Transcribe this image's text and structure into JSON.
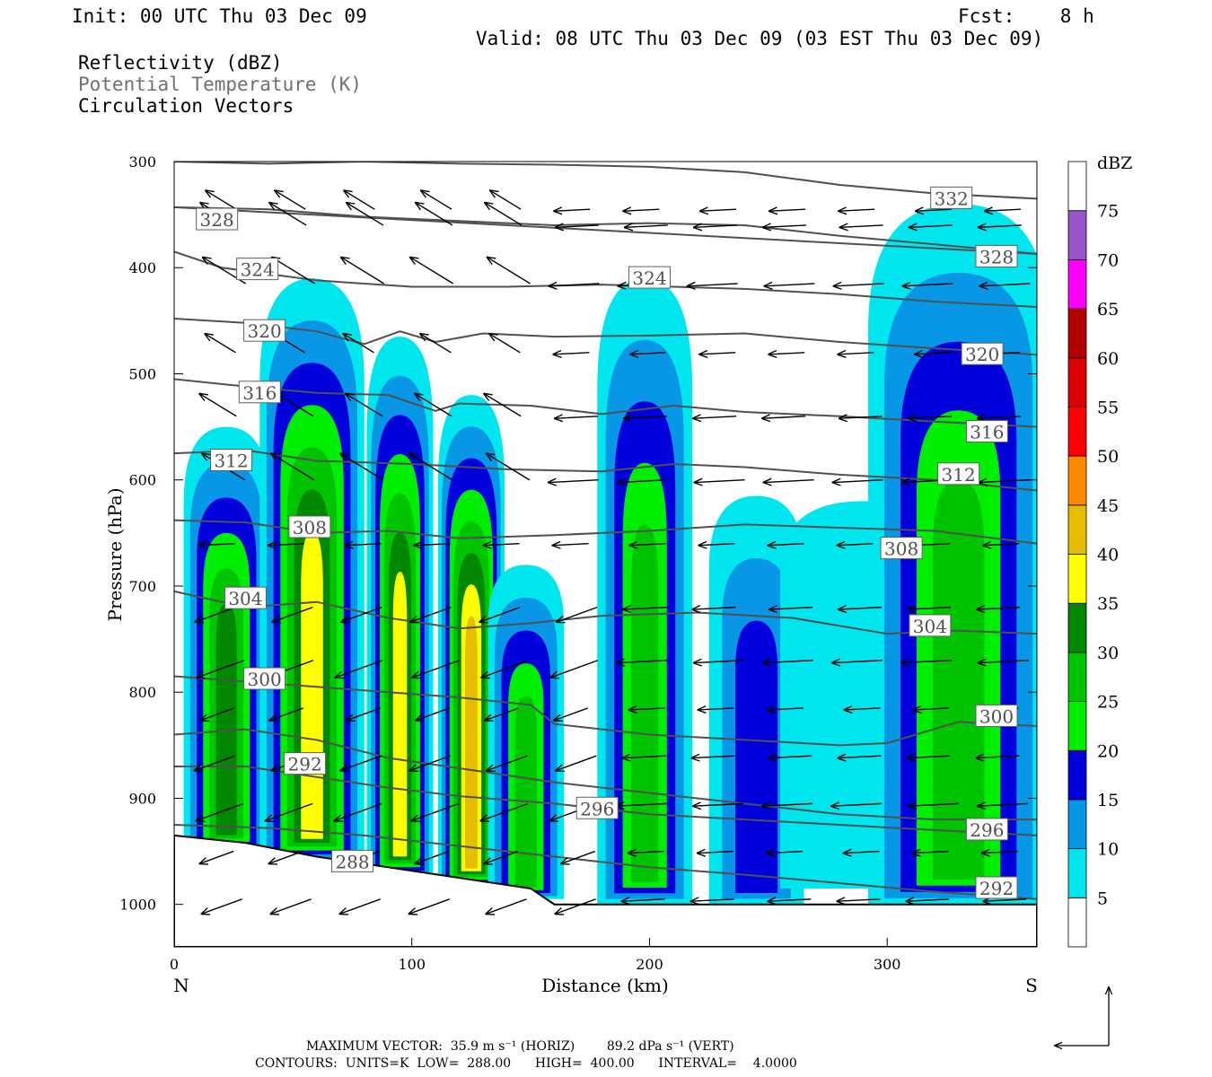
{
  "header": {
    "init": "Init: 00 UTC Thu 03 Dec 09",
    "fcst": "Fcst:    8 h",
    "valid": "Valid: 08 UTC Thu 03 Dec 09 (03 EST Thu 03 Dec 09)"
  },
  "fields": {
    "reflectivity": "Reflectivity (dBZ)",
    "theta": "Potential Temperature (K)",
    "vectors": "Circulation Vectors"
  },
  "footer": {
    "max_vector": "MAXIMUM VECTOR:  35.9 m s⁻¹ (HORIZ)        89.2 dPa s⁻¹ (VERT)",
    "contours": "CONTOURS:  UNITS=K  LOW=  288.00      HIGH=  400.00      INTERVAL=    4.0000"
  },
  "colors": {
    "theta_line": "#505050",
    "vector": "#000000"
  },
  "chart_data": {
    "type": "heatmap",
    "xlabel": "Distance (km)",
    "ylabel": "Pressure (hPa)",
    "xlim": [
      0,
      363
    ],
    "ylim": [
      1040,
      300
    ],
    "x_ticks": [
      "0",
      "100",
      "200",
      "300"
    ],
    "y_ticks": [
      "300",
      "400",
      "500",
      "600",
      "700",
      "800",
      "900",
      "1000"
    ],
    "x_end_labels": {
      "left": "N",
      "right": "S"
    },
    "colorbar": {
      "unit": "dBZ",
      "levels": [
        "5",
        "10",
        "15",
        "20",
        "25",
        "30",
        "35",
        "40",
        "45",
        "50",
        "55",
        "60",
        "65",
        "70",
        "75"
      ],
      "colors": [
        "#ffffff",
        "#00e6ee",
        "#0896e6",
        "#0000dd",
        "#00ee00",
        "#00c400",
        "#008800",
        "#ffff00",
        "#e6be00",
        "#ff8800",
        "#ff0000",
        "#dd0000",
        "#b00000",
        "#ff00ff",
        "#9955c8",
        "#ffffff"
      ]
    },
    "reflectivity_cells": [
      {
        "x": 22,
        "top": 550,
        "bottom": 950,
        "w": 18,
        "peak": 30
      },
      {
        "x": 58,
        "top": 410,
        "bottom": 960,
        "w": 22,
        "peak": 35
      },
      {
        "x": 95,
        "top": 465,
        "bottom": 975,
        "w": 14,
        "peak": 35
      },
      {
        "x": 125,
        "top": 520,
        "bottom": 985,
        "w": 14,
        "peak": 40
      },
      {
        "x": 148,
        "top": 680,
        "bottom": 995,
        "w": 16,
        "peak": 25
      },
      {
        "x": 198,
        "top": 410,
        "bottom": 1000,
        "w": 20,
        "peak": 25
      },
      {
        "x": 245,
        "top": 615,
        "bottom": 1000,
        "w": 20,
        "peak": 15
      },
      {
        "x": 290,
        "top": 620,
        "bottom": 985,
        "w": 35,
        "peak": 5
      },
      {
        "x": 330,
        "top": 340,
        "bottom": 1000,
        "w": 38,
        "peak": 25
      }
    ],
    "theta_contours": [
      {
        "label": "332",
        "label_x": 327,
        "points": [
          [
            0,
            300
          ],
          [
            40,
            302
          ],
          [
            80,
            300
          ],
          [
            120,
            302
          ],
          [
            160,
            303
          ],
          [
            200,
            305
          ],
          [
            240,
            310
          ],
          [
            280,
            322
          ],
          [
            320,
            330
          ],
          [
            363,
            335
          ]
        ]
      },
      {
        "label": "328",
        "label_x": 18,
        "label_pos": 1,
        "points": [
          [
            0,
            343
          ],
          [
            40,
            345
          ],
          [
            80,
            352
          ],
          [
            120,
            356
          ],
          [
            160,
            360
          ],
          [
            200,
            358
          ],
          [
            240,
            360
          ],
          [
            280,
            370
          ],
          [
            320,
            378
          ],
          [
            363,
            387
          ]
        ]
      },
      {
        "label": "328",
        "label_x": 346,
        "points": [
          [
            0,
            343
          ],
          [
            363,
            387
          ]
        ]
      },
      {
        "label": "324",
        "label_x": 35,
        "points": [
          [
            0,
            385
          ],
          [
            20,
            400
          ],
          [
            60,
            412
          ],
          [
            100,
            418
          ],
          [
            140,
            418
          ],
          [
            180,
            416
          ],
          [
            210,
            418
          ],
          [
            240,
            420
          ],
          [
            280,
            425
          ],
          [
            320,
            432
          ],
          [
            363,
            437
          ]
        ]
      },
      {
        "label": "324",
        "label_x": 200,
        "points": []
      },
      {
        "label": "320",
        "label_x": 38,
        "points": [
          [
            0,
            448
          ],
          [
            30,
            452
          ],
          [
            60,
            460
          ],
          [
            80,
            472
          ],
          [
            95,
            460
          ],
          [
            110,
            470
          ],
          [
            130,
            462
          ],
          [
            160,
            465
          ],
          [
            200,
            464
          ],
          [
            240,
            462
          ],
          [
            280,
            470
          ],
          [
            320,
            476
          ],
          [
            363,
            482
          ]
        ]
      },
      {
        "label": "320",
        "label_x": 340,
        "points": []
      },
      {
        "label": "316",
        "label_x": 36,
        "points": [
          [
            0,
            505
          ],
          [
            30,
            512
          ],
          [
            60,
            518
          ],
          [
            90,
            520
          ],
          [
            110,
            535
          ],
          [
            120,
            528
          ],
          [
            150,
            530
          ],
          [
            180,
            538
          ],
          [
            210,
            530
          ],
          [
            240,
            536
          ],
          [
            280,
            540
          ],
          [
            320,
            545
          ],
          [
            363,
            550
          ]
        ]
      },
      {
        "label": "316",
        "label_x": 342,
        "points": []
      },
      {
        "label": "312",
        "label_x": 24,
        "points": [
          [
            0,
            575
          ],
          [
            30,
            572
          ],
          [
            60,
            582
          ],
          [
            100,
            585
          ],
          [
            140,
            590
          ],
          [
            180,
            592
          ],
          [
            210,
            585
          ],
          [
            240,
            588
          ],
          [
            280,
            595
          ],
          [
            320,
            600
          ],
          [
            363,
            610
          ]
        ]
      },
      {
        "label": "312",
        "label_x": 330,
        "points": []
      },
      {
        "label": "308",
        "label_x": 57,
        "points": [
          [
            0,
            638
          ],
          [
            30,
            640
          ],
          [
            60,
            650
          ],
          [
            90,
            648
          ],
          [
            120,
            655
          ],
          [
            160,
            652
          ],
          [
            200,
            648
          ],
          [
            240,
            642
          ],
          [
            280,
            645
          ],
          [
            320,
            648
          ],
          [
            363,
            660
          ]
        ]
      },
      {
        "label": "308",
        "label_x": 306,
        "points": []
      },
      {
        "label": "304",
        "label_x": 30,
        "points": [
          [
            0,
            705
          ],
          [
            30,
            720
          ],
          [
            60,
            715
          ],
          [
            90,
            730
          ],
          [
            120,
            740
          ],
          [
            150,
            735
          ],
          [
            180,
            728
          ],
          [
            220,
            725
          ],
          [
            260,
            730
          ],
          [
            300,
            745
          ],
          [
            330,
            742
          ],
          [
            363,
            745
          ]
        ]
      },
      {
        "label": "304",
        "label_x": 318,
        "points": []
      },
      {
        "label": "300",
        "label_x": 38,
        "points": [
          [
            0,
            785
          ],
          [
            30,
            790
          ],
          [
            60,
            795
          ],
          [
            90,
            800
          ],
          [
            120,
            805
          ],
          [
            150,
            812
          ],
          [
            160,
            830
          ],
          [
            200,
            840
          ],
          [
            240,
            845
          ],
          [
            280,
            850
          ],
          [
            300,
            848
          ],
          [
            330,
            828
          ],
          [
            363,
            832
          ]
        ]
      },
      {
        "label": "300",
        "label_x": 346,
        "points": []
      },
      {
        "label": "292",
        "label_x": 55,
        "points": [
          [
            0,
            870
          ],
          [
            30,
            870
          ],
          [
            60,
            880
          ],
          [
            90,
            890
          ],
          [
            120,
            898
          ],
          [
            160,
            905
          ],
          [
            200,
            915
          ],
          [
            240,
            920
          ],
          [
            280,
            925
          ],
          [
            320,
            930
          ],
          [
            363,
            935
          ]
        ]
      },
      {
        "label": "296",
        "label_x": 178,
        "points": [
          [
            0,
            840
          ],
          [
            30,
            835
          ],
          [
            60,
            845
          ],
          [
            90,
            862
          ],
          [
            130,
            875
          ],
          [
            160,
            885
          ],
          [
            200,
            895
          ],
          [
            240,
            905
          ],
          [
            280,
            915
          ],
          [
            320,
            920
          ],
          [
            363,
            920
          ]
        ]
      },
      {
        "label": "296",
        "label_x": 342,
        "points": []
      },
      {
        "label": "288",
        "label_x": 75,
        "points": [
          [
            0,
            925
          ],
          [
            40,
            928
          ],
          [
            80,
            935
          ],
          [
            120,
            945
          ],
          [
            160,
            955
          ],
          [
            200,
            965
          ],
          [
            240,
            972
          ],
          [
            280,
            980
          ],
          [
            320,
            988
          ],
          [
            363,
            995
          ]
        ]
      },
      {
        "label": "292",
        "label_x": 346,
        "points": []
      }
    ],
    "terrain": [
      [
        0,
        935
      ],
      [
        30,
        942
      ],
      [
        60,
        955
      ],
      [
        90,
        965
      ],
      [
        120,
        975
      ],
      [
        150,
        985
      ],
      [
        160,
        1000
      ],
      [
        363,
        1000
      ]
    ],
    "label_positions": [
      {
        "v": "332",
        "x": 327,
        "p": 335
      },
      {
        "v": "328",
        "x": 18,
        "p": 355
      },
      {
        "v": "328",
        "x": 346,
        "p": 390
      },
      {
        "v": "324",
        "x": 35,
        "p": 402
      },
      {
        "v": "324",
        "x": 200,
        "p": 410
      },
      {
        "v": "320",
        "x": 38,
        "p": 460
      },
      {
        "v": "320",
        "x": 340,
        "p": 482
      },
      {
        "v": "316",
        "x": 36,
        "p": 518
      },
      {
        "v": "316",
        "x": 342,
        "p": 555
      },
      {
        "v": "312",
        "x": 24,
        "p": 582
      },
      {
        "v": "312",
        "x": 330,
        "p": 595
      },
      {
        "v": "308",
        "x": 57,
        "p": 645
      },
      {
        "v": "308",
        "x": 306,
        "p": 665
      },
      {
        "v": "304",
        "x": 30,
        "p": 712
      },
      {
        "v": "304",
        "x": 318,
        "p": 738
      },
      {
        "v": "300",
        "x": 38,
        "p": 788
      },
      {
        "v": "300",
        "x": 346,
        "p": 823
      },
      {
        "v": "292",
        "x": 55,
        "p": 868
      },
      {
        "v": "296",
        "x": 178,
        "p": 910
      },
      {
        "v": "296",
        "x": 342,
        "p": 930
      },
      {
        "v": "288",
        "x": 75,
        "p": 960
      },
      {
        "v": "292",
        "x": 346,
        "p": 985
      }
    ]
  }
}
